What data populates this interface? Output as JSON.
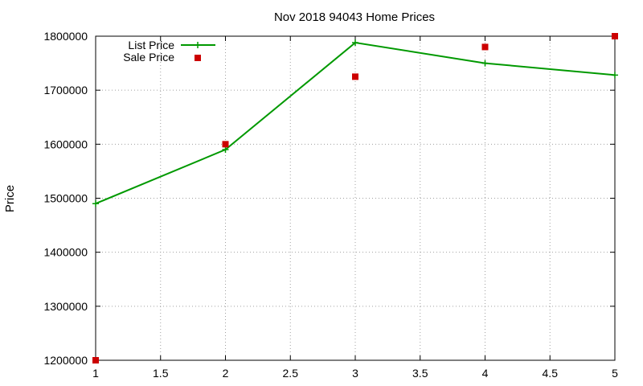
{
  "chart_data": {
    "type": "line",
    "title": "Nov 2018 94043 Home Prices",
    "xlabel": "",
    "ylabel": "Price",
    "xlim": [
      1,
      5
    ],
    "ylim": [
      1200000,
      1800000
    ],
    "x_ticks": [
      "1",
      "1.5",
      "2",
      "2.5",
      "3",
      "3.5",
      "4",
      "4.5",
      "5"
    ],
    "x_tick_values": [
      1,
      1.5,
      2,
      2.5,
      3,
      3.5,
      4,
      4.5,
      5
    ],
    "y_ticks": [
      "1200000",
      "1300000",
      "1400000",
      "1500000",
      "1600000",
      "1700000",
      "1800000"
    ],
    "y_tick_values": [
      1200000,
      1300000,
      1400000,
      1500000,
      1600000,
      1700000,
      1800000
    ],
    "grid": true,
    "legend_position": "top-left",
    "series": [
      {
        "name": "List Price",
        "style": "line-with-plus-markers",
        "color": "#009900",
        "x": [
          1,
          2,
          3,
          4,
          5
        ],
        "values": [
          1490000,
          1590000,
          1788000,
          1750000,
          1728000
        ]
      },
      {
        "name": "Sale Price",
        "style": "square-markers",
        "color": "#cc0000",
        "x": [
          1,
          2,
          3,
          4,
          5
        ],
        "values": [
          1200000,
          1600000,
          1725000,
          1780000,
          1800000
        ]
      }
    ]
  }
}
